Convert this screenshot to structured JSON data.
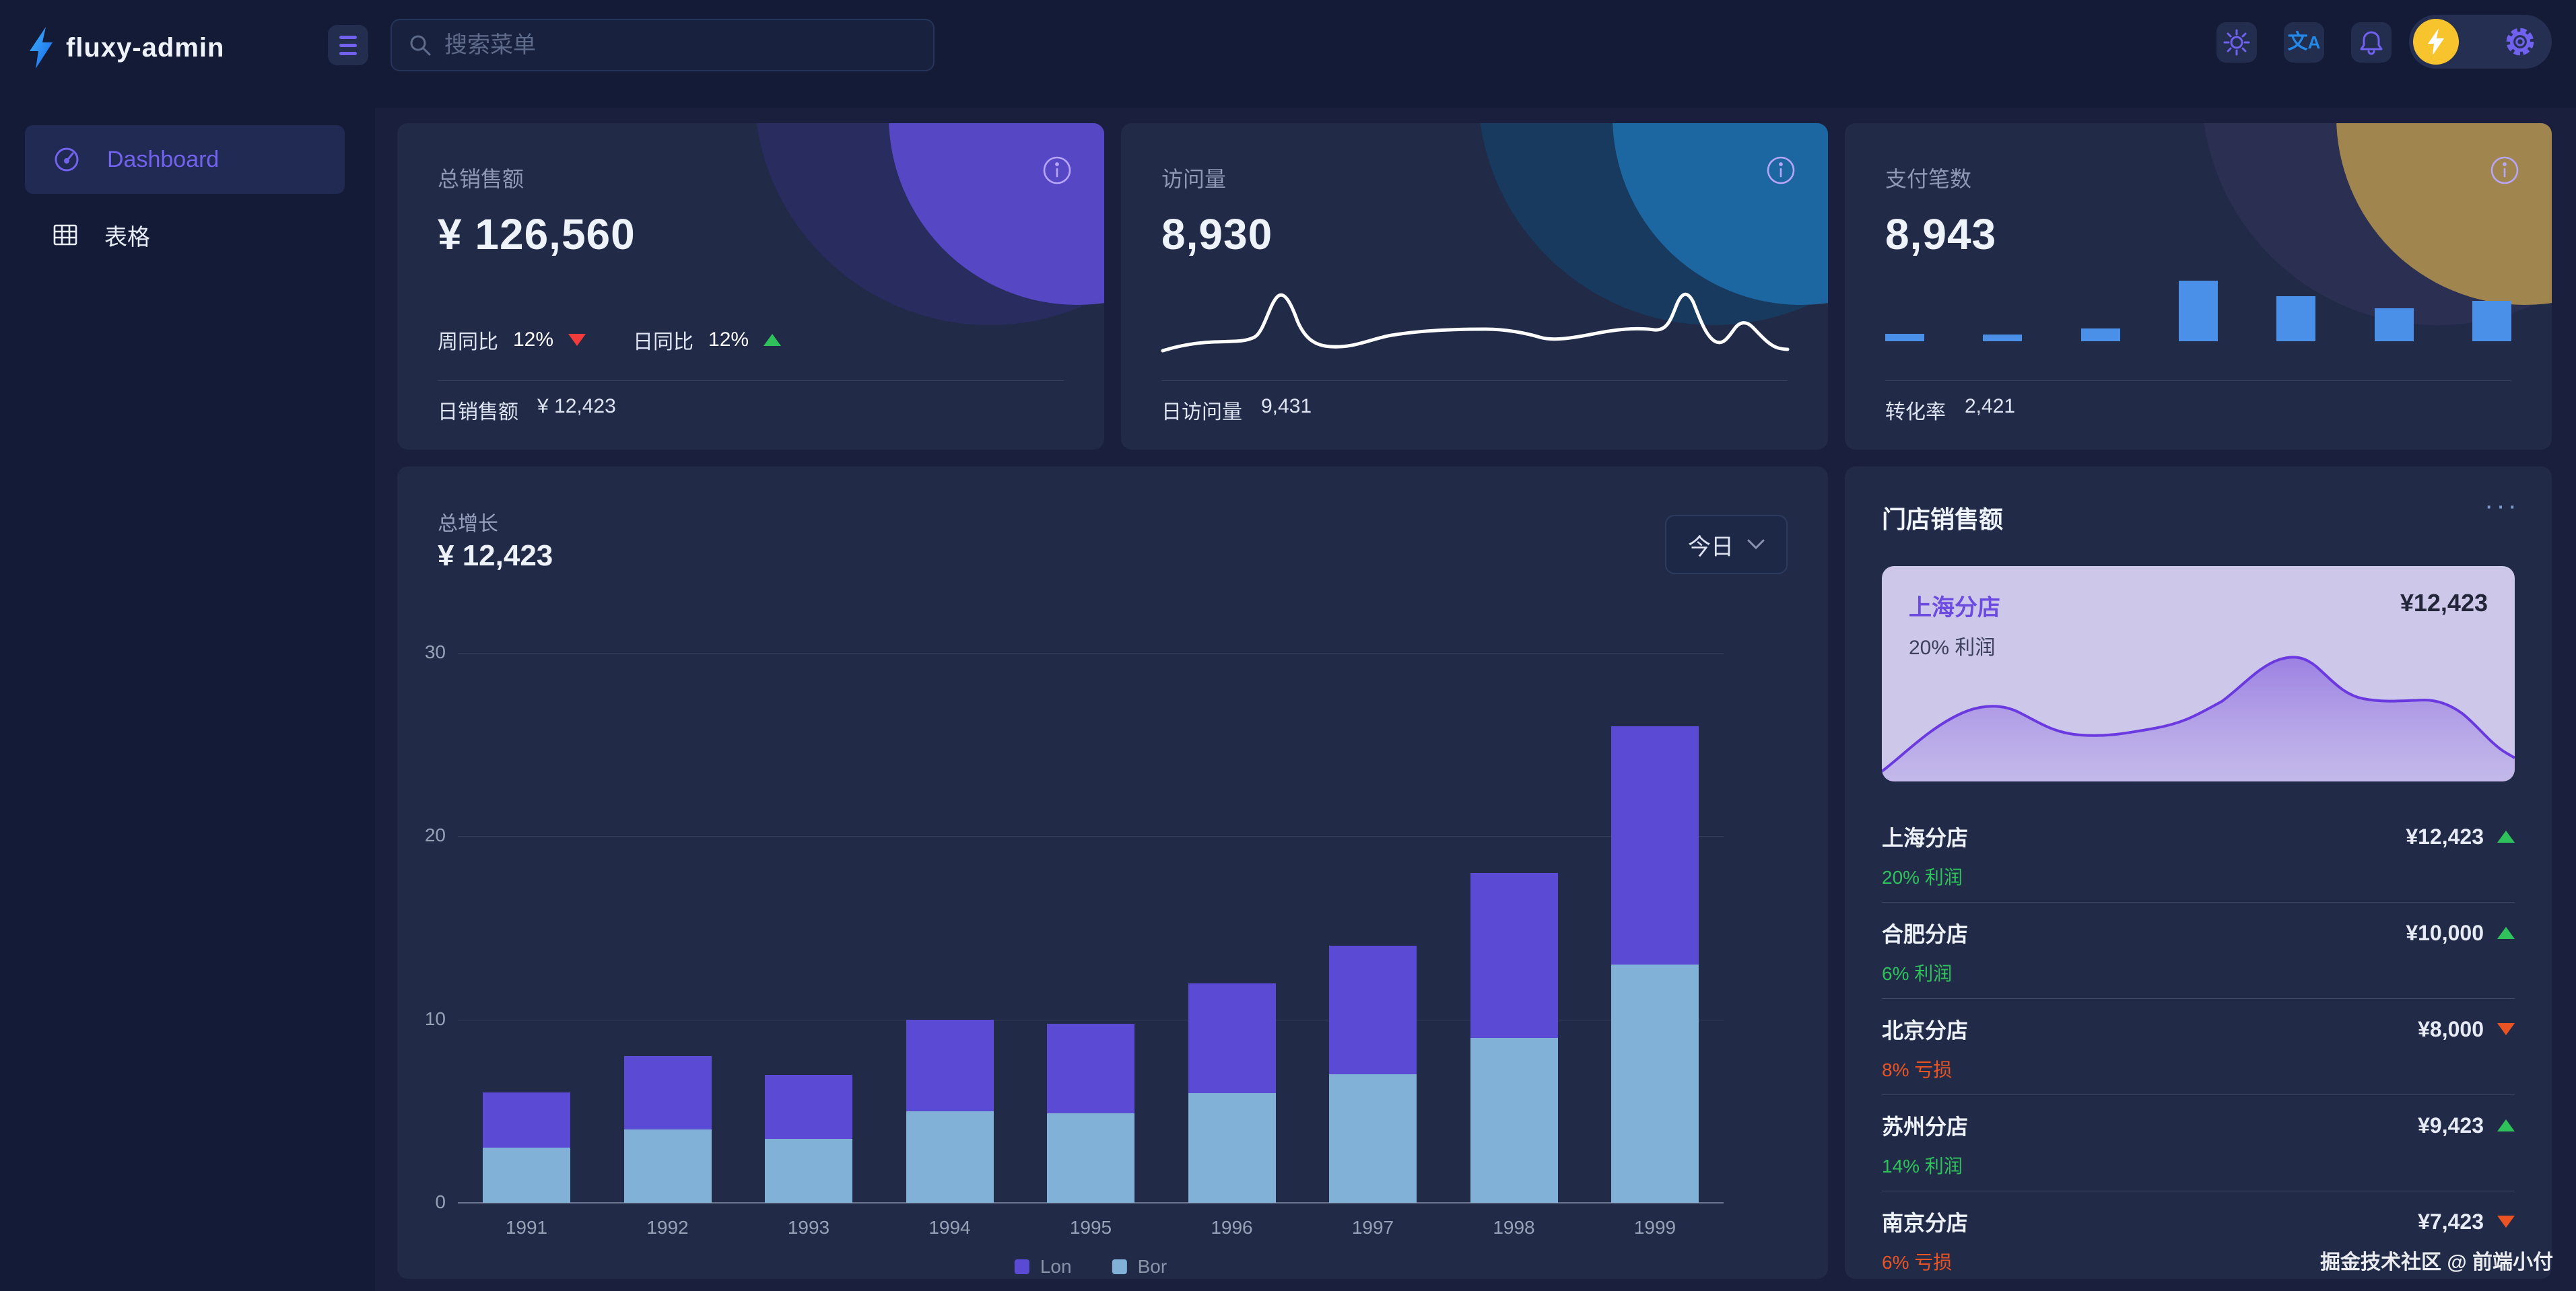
{
  "brand": {
    "name": "fluxy-admin"
  },
  "topbar": {
    "search_placeholder": "搜索菜单",
    "icons": [
      "menu-icon",
      "search-icon",
      "theme-sun-icon",
      "translate-icon",
      "notification-bell-icon",
      "user-avatar-lightning",
      "settings-gear-icon"
    ]
  },
  "sidebar": {
    "items": [
      {
        "label": "Dashboard",
        "icon": "gauge-icon",
        "active": true
      },
      {
        "label": "表格",
        "icon": "table-icon",
        "active": false
      }
    ]
  },
  "stat_cards": [
    {
      "label": "总销售额",
      "value": "¥ 126,560",
      "accent": "#5a4ace",
      "week": {
        "label": "周同比",
        "value": "12%",
        "trend": "down"
      },
      "day": {
        "label": "日同比",
        "value": "12%",
        "trend": "up"
      },
      "footer_label": "日销售额",
      "footer_value": "¥ 12,423"
    },
    {
      "label": "访问量",
      "value": "8,930",
      "accent": "#1d6fae",
      "footer_label": "日访问量",
      "footer_value": "9,431"
    },
    {
      "label": "支付笔数",
      "value": "8,943",
      "accent": "#b5954d",
      "footer_label": "转化率",
      "footer_value": "2,421",
      "mini_bars": [
        0.12,
        0.11,
        0.21,
        1,
        0.74,
        0.54,
        0.67
      ],
      "mini_bar_color": "#4a8fe8"
    }
  ],
  "growth_chart": {
    "title": "总增长",
    "value": "¥ 12,423",
    "range_label": "今日"
  },
  "chart_data": {
    "type": "bar",
    "stacked": true,
    "title": "总增长",
    "categories": [
      "1991",
      "1992",
      "1993",
      "1994",
      "1995",
      "1996",
      "1997",
      "1998",
      "1999"
    ],
    "series": [
      {
        "name": "Lon",
        "color": "#5b4ad4",
        "values": [
          3,
          4,
          3.5,
          5,
          4.9,
          6,
          7,
          9,
          13
        ]
      },
      {
        "name": "Bor",
        "color": "#82b1d8",
        "values": [
          3,
          4,
          3.5,
          5,
          4.9,
          6,
          7,
          9,
          13
        ]
      }
    ],
    "ylim": [
      0,
      30
    ],
    "yticks": [
      0,
      10,
      20,
      30
    ],
    "grid": true,
    "legend_position": "bottom"
  },
  "store_panel": {
    "title": "门店销售额",
    "menu_icon": "···",
    "highlight": {
      "name": "上海分店",
      "value": "¥12,423",
      "note": "20% 利润"
    },
    "items": [
      {
        "name": "上海分店",
        "value": "¥12,423",
        "trend": "up",
        "note": "20% 利润"
      },
      {
        "name": "合肥分店",
        "value": "¥10,000",
        "trend": "up",
        "note": "6% 利润"
      },
      {
        "name": "北京分店",
        "value": "¥8,000",
        "trend": "down",
        "note": "8% 亏损"
      },
      {
        "name": "苏州分店",
        "value": "¥9,423",
        "trend": "up",
        "note": "14% 利润"
      },
      {
        "name": "南京分店",
        "value": "¥7,423",
        "trend": "down",
        "note": "6% 亏损"
      }
    ]
  },
  "watermark": {
    "text": "掘金技术社区 @ 前端小付"
  }
}
